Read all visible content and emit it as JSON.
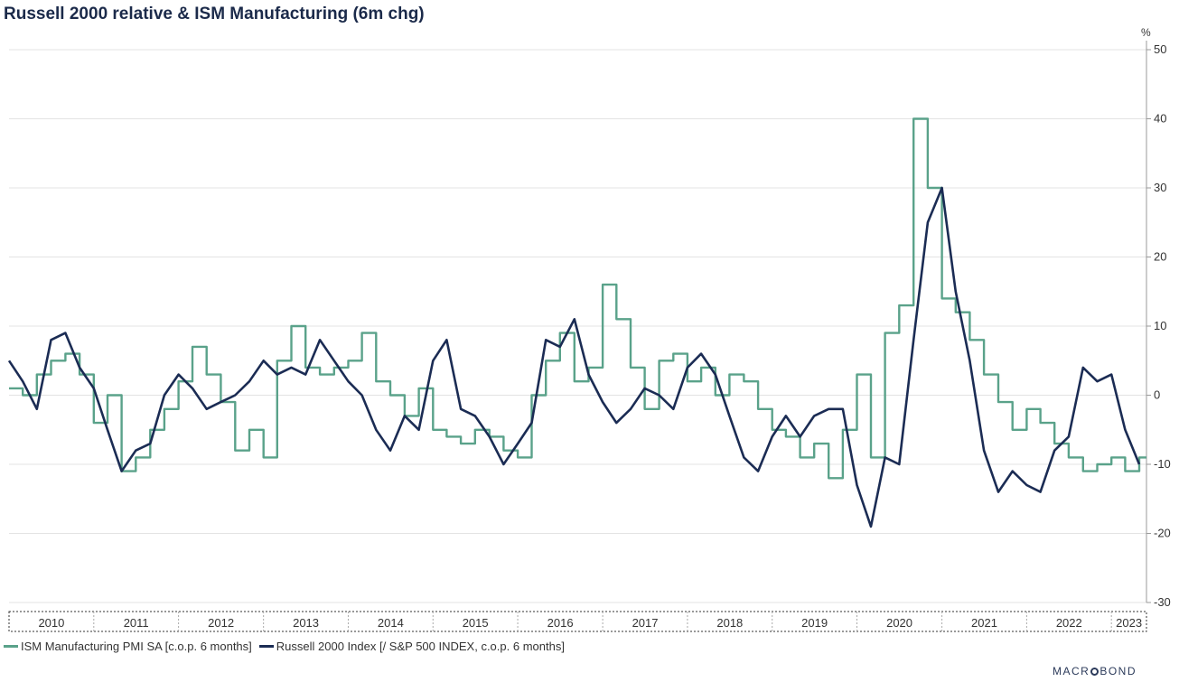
{
  "title": "Russell 2000 relative & ISM Manufacturing (6m chg)",
  "colors": {
    "ism": "#5aa28a",
    "russell": "#1b2c54",
    "grid": "#e3e3e3"
  },
  "legend": [
    {
      "label": "ISM Manufacturing PMI SA [c.o.p. 6 months]",
      "color": "#5aa28a"
    },
    {
      "label": "Russell 2000 Index [/ S&P 500 INDEX, c.o.p. 6 months]",
      "color": "#1b2c54"
    }
  ],
  "brand": {
    "pre": "MACR",
    "post": "BOND"
  },
  "chart_data": {
    "type": "line",
    "title": "Russell 2000 relative & ISM Manufacturing (6m chg)",
    "y_unit": "%",
    "ylim": [
      -30,
      50
    ],
    "yticks": [
      50,
      40,
      30,
      20,
      10,
      0,
      -10,
      -20,
      -30
    ],
    "x_range": [
      "2010-01",
      "2023-06"
    ],
    "x_labels": [
      "2010",
      "2011",
      "2012",
      "2013",
      "2014",
      "2015",
      "2016",
      "2017",
      "2018",
      "2019",
      "2020",
      "2021",
      "2022",
      "2023"
    ],
    "grid": true,
    "y_axis_side": "right",
    "legend_position": "bottom",
    "series": [
      {
        "name": "ISM Manufacturing PMI SA [c.o.p. 6 months]",
        "step": true,
        "x": [
          "2010-01",
          "2010-03",
          "2010-05",
          "2010-07",
          "2010-09",
          "2010-11",
          "2011-01",
          "2011-03",
          "2011-05",
          "2011-07",
          "2011-09",
          "2011-11",
          "2012-01",
          "2012-03",
          "2012-05",
          "2012-07",
          "2012-09",
          "2012-11",
          "2013-01",
          "2013-03",
          "2013-05",
          "2013-07",
          "2013-09",
          "2013-11",
          "2014-01",
          "2014-03",
          "2014-05",
          "2014-07",
          "2014-09",
          "2014-11",
          "2015-01",
          "2015-03",
          "2015-05",
          "2015-07",
          "2015-09",
          "2015-11",
          "2016-01",
          "2016-03",
          "2016-05",
          "2016-07",
          "2016-09",
          "2016-11",
          "2017-01",
          "2017-03",
          "2017-05",
          "2017-07",
          "2017-09",
          "2017-11",
          "2018-01",
          "2018-03",
          "2018-05",
          "2018-07",
          "2018-09",
          "2018-11",
          "2019-01",
          "2019-03",
          "2019-05",
          "2019-07",
          "2019-09",
          "2019-11",
          "2020-01",
          "2020-03",
          "2020-05",
          "2020-07",
          "2020-09",
          "2020-11",
          "2021-01",
          "2021-03",
          "2021-05",
          "2021-07",
          "2021-09",
          "2021-11",
          "2022-01",
          "2022-03",
          "2022-05",
          "2022-07",
          "2022-09",
          "2022-11",
          "2023-01",
          "2023-03",
          "2023-05"
        ],
        "y": [
          1,
          0,
          3,
          5,
          6,
          3,
          -4,
          0,
          -11,
          -9,
          -5,
          -2,
          2,
          7,
          3,
          -1,
          -8,
          -5,
          -9,
          5,
          10,
          4,
          3,
          4,
          5,
          9,
          2,
          0,
          -3,
          1,
          -5,
          -6,
          -7,
          -5,
          -6,
          -8,
          -9,
          0,
          5,
          9,
          2,
          4,
          16,
          11,
          4,
          -2,
          5,
          6,
          2,
          4,
          0,
          3,
          2,
          -2,
          -5,
          -6,
          -9,
          -7,
          -12,
          -5,
          3,
          -9,
          9,
          13,
          40,
          30,
          14,
          12,
          8,
          3,
          -1,
          -5,
          -2,
          -4,
          -7,
          -9,
          -11,
          -10,
          -9,
          -11,
          -9
        ]
      },
      {
        "name": "Russell 2000 Index [/ S&P 500 INDEX, c.o.p. 6 months]",
        "x": [
          "2010-01",
          "2010-03",
          "2010-05",
          "2010-07",
          "2010-09",
          "2010-11",
          "2011-01",
          "2011-03",
          "2011-05",
          "2011-07",
          "2011-09",
          "2011-11",
          "2012-01",
          "2012-03",
          "2012-05",
          "2012-07",
          "2012-09",
          "2012-11",
          "2013-01",
          "2013-03",
          "2013-05",
          "2013-07",
          "2013-09",
          "2013-11",
          "2014-01",
          "2014-03",
          "2014-05",
          "2014-07",
          "2014-09",
          "2014-11",
          "2015-01",
          "2015-03",
          "2015-05",
          "2015-07",
          "2015-09",
          "2015-11",
          "2016-01",
          "2016-03",
          "2016-05",
          "2016-07",
          "2016-09",
          "2016-11",
          "2017-01",
          "2017-03",
          "2017-05",
          "2017-07",
          "2017-09",
          "2017-11",
          "2018-01",
          "2018-03",
          "2018-05",
          "2018-07",
          "2018-09",
          "2018-11",
          "2019-01",
          "2019-03",
          "2019-05",
          "2019-07",
          "2019-09",
          "2019-11",
          "2020-01",
          "2020-03",
          "2020-05",
          "2020-07",
          "2020-09",
          "2020-11",
          "2021-01",
          "2021-03",
          "2021-05",
          "2021-07",
          "2021-09",
          "2021-11",
          "2022-01",
          "2022-03",
          "2022-05",
          "2022-07",
          "2022-09",
          "2022-11",
          "2023-01",
          "2023-03",
          "2023-05"
        ],
        "y": [
          5,
          2,
          -2,
          8,
          9,
          4,
          1,
          -5,
          -11,
          -8,
          -7,
          0,
          3,
          1,
          -2,
          -1,
          0,
          2,
          5,
          3,
          4,
          3,
          8,
          5,
          2,
          0,
          -5,
          -8,
          -3,
          -5,
          5,
          8,
          -2,
          -3,
          -6,
          -10,
          -7,
          -4,
          8,
          7,
          11,
          3,
          -1,
          -4,
          -2,
          1,
          0,
          -2,
          4,
          6,
          3,
          -3,
          -9,
          -11,
          -6,
          -3,
          -6,
          -3,
          -2,
          -2,
          -13,
          -19,
          -9,
          -10,
          8,
          25,
          30,
          15,
          5,
          -8,
          -14,
          -11,
          -13,
          -14,
          -8,
          -6,
          4,
          2,
          3,
          -5,
          -10
        ]
      }
    ]
  }
}
